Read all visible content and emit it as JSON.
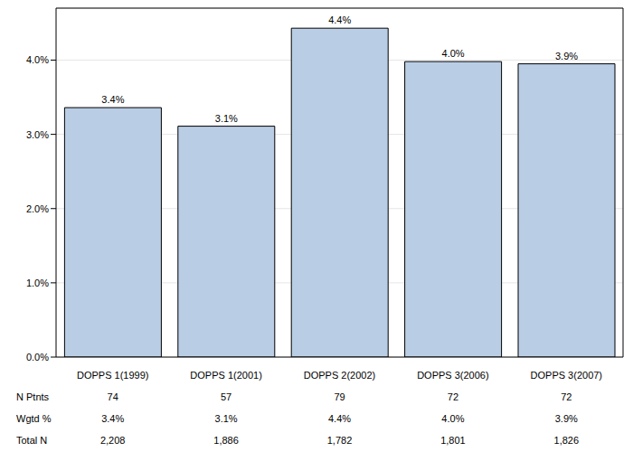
{
  "chart_data": {
    "type": "bar",
    "categories": [
      "DOPPS 1(1999)",
      "DOPPS 1(2001)",
      "DOPPS 2(2002)",
      "DOPPS 3(2006)",
      "DOPPS 3(2007)"
    ],
    "values": [
      3.36,
      3.11,
      4.43,
      3.98,
      3.95
    ],
    "value_labels": [
      "3.4%",
      "3.1%",
      "4.4%",
      "4.0%",
      "3.9%"
    ],
    "data_labels": true,
    "color": "#b9cde5",
    "ylim": [
      0,
      4.7
    ],
    "yticks": [
      {
        "value": 0,
        "label": "0.0%"
      },
      {
        "value": 1,
        "label": "1.0%"
      },
      {
        "value": 2,
        "label": "2.0%"
      },
      {
        "value": 3,
        "label": "3.0%"
      },
      {
        "value": 4,
        "label": "4.0%"
      }
    ],
    "grid": true,
    "table": [
      {
        "label": "N Ptnts",
        "values": [
          "74",
          "57",
          "79",
          "72",
          "72"
        ]
      },
      {
        "label": "Wgtd %",
        "values": [
          "3.4%",
          "3.1%",
          "4.4%",
          "4.0%",
          "3.9%"
        ]
      },
      {
        "label": "Total N",
        "values": [
          "2,208",
          "1,886",
          "1,782",
          "1,801",
          "1,826"
        ]
      }
    ]
  }
}
